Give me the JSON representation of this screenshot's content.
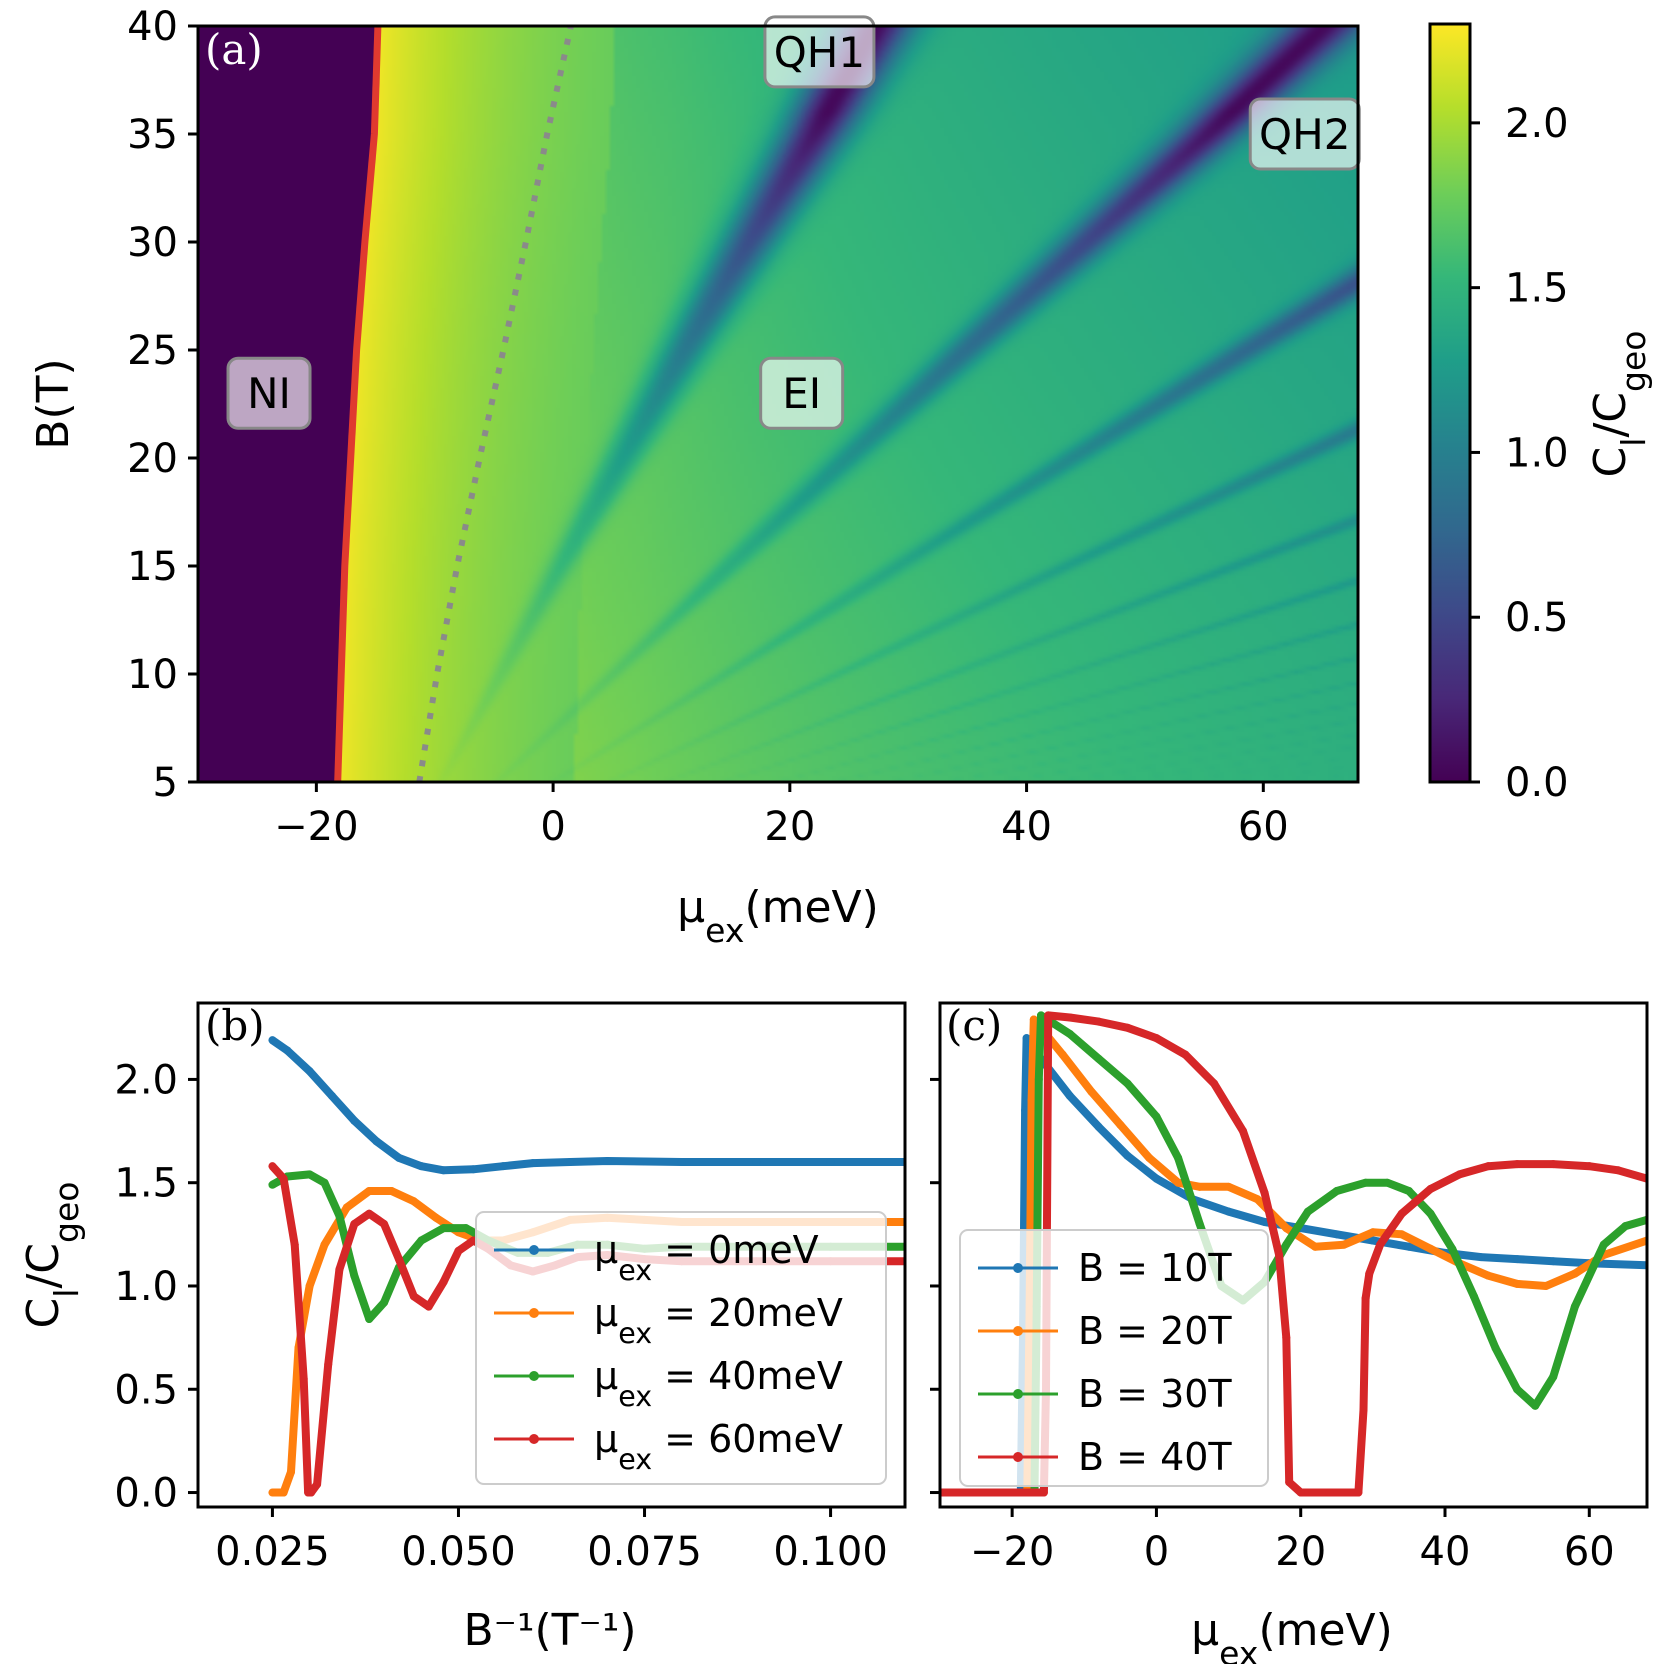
{
  "colors": {
    "blue": "#1f77b4",
    "orange": "#ff7f0e",
    "green": "#2ca02c",
    "red": "#d62728",
    "boundary": "#e03a2f",
    "dotted": "#8a8a8a",
    "colormap": [
      "#440154",
      "#482878",
      "#3e4989",
      "#31688e",
      "#26828e",
      "#1f9e89",
      "#35b779",
      "#6ece58",
      "#b5de2b",
      "#fde725"
    ]
  },
  "chart_data": [
    {
      "id": "a",
      "type": "heatmap",
      "panel_label": "(a)",
      "xlabel": "μex(meV)",
      "ylabel": "B(T)",
      "xlim": [
        -30,
        68
      ],
      "ylim": [
        5,
        40
      ],
      "xticks": [
        -20,
        0,
        20,
        40,
        60
      ],
      "xtick_labels": [
        "−20",
        "0",
        "20",
        "40",
        "60"
      ],
      "yticks": [
        5,
        10,
        15,
        20,
        25,
        30,
        35,
        40
      ],
      "yticks_labels": [
        "5",
        "10",
        "15",
        "20",
        "25",
        "30",
        "35",
        "40"
      ],
      "colorbar": {
        "label": "Cl/Cgeo",
        "lim": [
          0,
          2.3
        ],
        "ticks": [
          0,
          0.5,
          1.0,
          1.5,
          2.0
        ],
        "tick_labels": [
          "0.0",
          "0.5",
          "1.0",
          "1.5",
          "2.0"
        ]
      },
      "region_labels": [
        {
          "text": "NI",
          "x": -24,
          "y": 23
        },
        {
          "text": "EI",
          "x": 21,
          "y": 23
        },
        {
          "text": "QH1",
          "x": 22.5,
          "y": 38.8
        },
        {
          "text": "QH2",
          "x": 63.5,
          "y": 35
        }
      ],
      "ni_boundary": {
        "B": [
          5,
          10,
          15,
          20,
          25,
          30,
          35,
          40
        ],
        "mu": [
          -18.2,
          -17.9,
          -17.6,
          -17.1,
          -16.6,
          -15.9,
          -15.1,
          -14.8
        ]
      },
      "dotted_curve": {
        "B": [
          5,
          10,
          15,
          20,
          25,
          30,
          35,
          40
        ],
        "mu": [
          -11.3,
          -9.8,
          -8.1,
          -6.2,
          -4.2,
          -2.3,
          -0.5,
          1.5
        ]
      }
    },
    {
      "id": "b",
      "type": "line",
      "panel_label": "(b)",
      "xlabel": "B⁻¹(T⁻¹)",
      "ylabel": "Cl/Cgeo",
      "xlim": [
        0.015,
        0.11
      ],
      "ylim": [
        -0.07,
        2.37
      ],
      "xticks": [
        0.025,
        0.05,
        0.075,
        0.1
      ],
      "xtick_labels": [
        "0.025",
        "0.050",
        "0.075",
        "0.100"
      ],
      "yticks": [
        0,
        0.5,
        1.0,
        1.5,
        2.0
      ],
      "ytick_labels": [
        "0.0",
        "0.5",
        "1.0",
        "1.5",
        "2.0"
      ],
      "legend_position": "center-right",
      "series": [
        {
          "name": "μex = 0meV",
          "color": "#1f77b4",
          "x": [
            0.025,
            0.027,
            0.03,
            0.033,
            0.036,
            0.039,
            0.042,
            0.045,
            0.048,
            0.052,
            0.056,
            0.06,
            0.065,
            0.07,
            0.08,
            0.09,
            0.1,
            0.11
          ],
          "y": [
            2.19,
            2.14,
            2.04,
            1.92,
            1.8,
            1.7,
            1.62,
            1.58,
            1.56,
            1.565,
            1.58,
            1.595,
            1.6,
            1.605,
            1.6,
            1.6,
            1.6,
            1.6
          ]
        },
        {
          "name": "μex = 20meV",
          "color": "#ff7f0e",
          "x": [
            0.025,
            0.0265,
            0.0275,
            0.0285,
            0.03,
            0.032,
            0.035,
            0.038,
            0.041,
            0.044,
            0.047,
            0.05,
            0.053,
            0.056,
            0.06,
            0.065,
            0.07,
            0.075,
            0.08,
            0.09,
            0.1,
            0.11
          ],
          "y": [
            0,
            0,
            0.1,
            0.7,
            1.0,
            1.2,
            1.38,
            1.46,
            1.46,
            1.41,
            1.33,
            1.26,
            1.22,
            1.22,
            1.26,
            1.32,
            1.33,
            1.32,
            1.31,
            1.31,
            1.31,
            1.31
          ]
        },
        {
          "name": "μex = 40meV",
          "color": "#2ca02c",
          "x": [
            0.025,
            0.027,
            0.03,
            0.032,
            0.034,
            0.036,
            0.038,
            0.04,
            0.042,
            0.045,
            0.048,
            0.051,
            0.054,
            0.058,
            0.062,
            0.066,
            0.07,
            0.075,
            0.08,
            0.09,
            0.1,
            0.11
          ],
          "y": [
            1.49,
            1.53,
            1.54,
            1.5,
            1.34,
            1.05,
            0.84,
            0.92,
            1.09,
            1.22,
            1.28,
            1.28,
            1.22,
            1.16,
            1.16,
            1.2,
            1.2,
            1.18,
            1.19,
            1.19,
            1.19,
            1.19
          ]
        },
        {
          "name": "μex = 60meV",
          "color": "#d62728",
          "x": [
            0.025,
            0.0265,
            0.028,
            0.0292,
            0.0298,
            0.0302,
            0.031,
            0.0325,
            0.034,
            0.036,
            0.038,
            0.04,
            0.042,
            0.044,
            0.046,
            0.048,
            0.05,
            0.052,
            0.054,
            0.057,
            0.06,
            0.063,
            0.066,
            0.07,
            0.075,
            0.08,
            0.09,
            0.1,
            0.11
          ],
          "y": [
            1.58,
            1.52,
            1.2,
            0.55,
            0,
            0,
            0.04,
            0.62,
            1.08,
            1.3,
            1.35,
            1.3,
            1.13,
            0.95,
            0.9,
            1.02,
            1.17,
            1.22,
            1.18,
            1.1,
            1.07,
            1.1,
            1.14,
            1.15,
            1.13,
            1.12,
            1.12,
            1.12,
            1.12
          ]
        }
      ]
    },
    {
      "id": "c",
      "type": "line",
      "panel_label": "(c)",
      "xlabel": "μex(meV)",
      "ylabel": "",
      "xlim": [
        -30,
        68
      ],
      "ylim": [
        -0.07,
        2.37
      ],
      "xticks": [
        -20,
        0,
        20,
        40,
        60
      ],
      "xtick_labels": [
        "−20",
        "0",
        "20",
        "40",
        "60"
      ],
      "yticks": [
        0,
        0.5,
        1.0,
        1.5,
        2.0
      ],
      "legend_position": "center-left",
      "series": [
        {
          "name": "B = 10T",
          "color": "#1f77b4",
          "x": [
            -30,
            -18.8,
            -18.5,
            -18.2,
            -18,
            -16,
            -12,
            -8,
            -4,
            0,
            5,
            10,
            15,
            20,
            25,
            30,
            35,
            40,
            45,
            50,
            55,
            60,
            68
          ],
          "y": [
            0,
            0,
            0.75,
            1.85,
            2.2,
            2.1,
            1.92,
            1.77,
            1.63,
            1.52,
            1.42,
            1.36,
            1.31,
            1.28,
            1.25,
            1.22,
            1.19,
            1.16,
            1.14,
            1.13,
            1.12,
            1.11,
            1.1
          ]
        },
        {
          "name": "B = 20T",
          "color": "#ff7f0e",
          "x": [
            -30,
            -17.9,
            -17.6,
            -17.3,
            -17,
            -13,
            -9,
            -5,
            -1,
            3,
            6,
            10,
            14,
            18,
            22,
            26,
            30,
            34,
            38,
            42,
            46,
            50,
            54,
            58,
            62,
            68
          ],
          "y": [
            0,
            0,
            0.85,
            1.9,
            2.29,
            2.12,
            1.94,
            1.78,
            1.62,
            1.5,
            1.48,
            1.48,
            1.42,
            1.28,
            1.19,
            1.2,
            1.26,
            1.25,
            1.18,
            1.11,
            1.05,
            1.01,
            1.0,
            1.06,
            1.15,
            1.22
          ]
        },
        {
          "name": "B = 30T",
          "color": "#2ca02c",
          "x": [
            -30,
            -16.9,
            -16.6,
            -16.3,
            -16,
            -12,
            -8,
            -4,
            0,
            3,
            6,
            9,
            12,
            15,
            18,
            21,
            25,
            29,
            32,
            35,
            38,
            41,
            44,
            47,
            50,
            52.5,
            55,
            58,
            62,
            65,
            68
          ],
          "y": [
            0,
            0,
            0.9,
            2.0,
            2.31,
            2.22,
            2.1,
            1.98,
            1.82,
            1.62,
            1.3,
            1.0,
            0.93,
            1.02,
            1.2,
            1.36,
            1.46,
            1.5,
            1.5,
            1.46,
            1.35,
            1.18,
            0.95,
            0.7,
            0.5,
            0.42,
            0.56,
            0.9,
            1.2,
            1.29,
            1.32
          ]
        },
        {
          "name": "B = 40T",
          "color": "#d62728",
          "x": [
            -30,
            -15.6,
            -15.3,
            -15,
            -12,
            -8,
            -4,
            0,
            4,
            8,
            12,
            15,
            17,
            18,
            18.4,
            20,
            24,
            28,
            28.7,
            29,
            29.5,
            31,
            34,
            38,
            42,
            46,
            50,
            55,
            60,
            64,
            68
          ],
          "y": [
            0,
            0,
            0.5,
            2.31,
            2.3,
            2.28,
            2.25,
            2.2,
            2.12,
            1.98,
            1.75,
            1.45,
            1.15,
            0.75,
            0.05,
            0,
            0,
            0,
            0.4,
            0.94,
            1.06,
            1.2,
            1.35,
            1.47,
            1.54,
            1.58,
            1.59,
            1.59,
            1.58,
            1.56,
            1.52
          ]
        }
      ]
    }
  ]
}
